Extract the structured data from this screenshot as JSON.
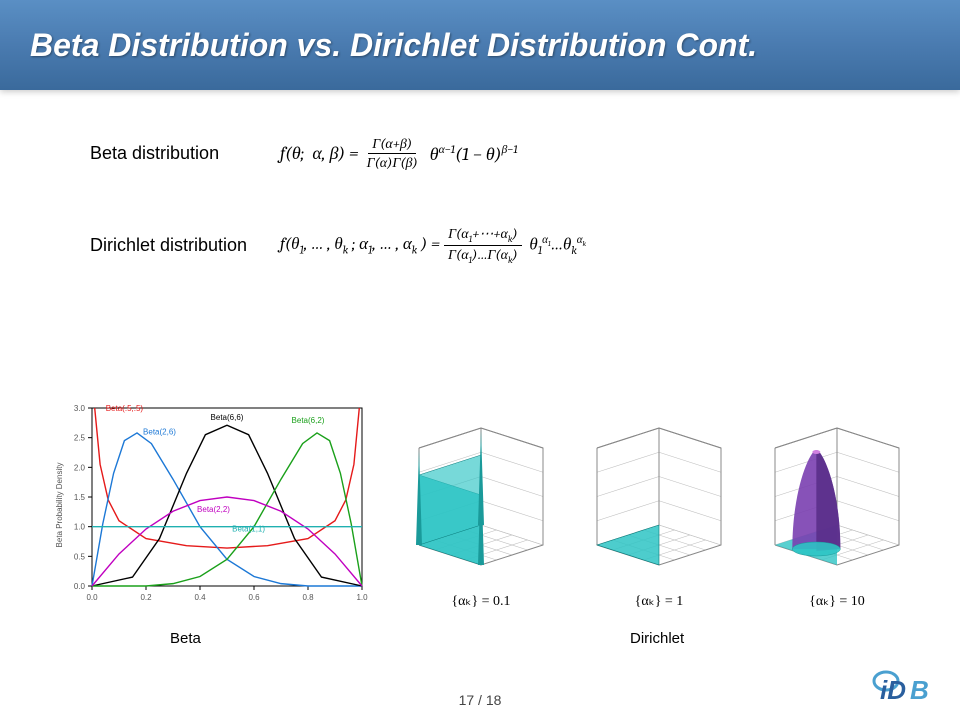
{
  "title": "Beta Distribution vs. Dirichlet Distribution  Cont.",
  "rows": {
    "beta": {
      "label": "Beta distribution"
    },
    "dirichlet": {
      "label": "Dirichlet distribution"
    }
  },
  "equations": {
    "beta": {
      "lhs": "f(θ;  α, β) = ",
      "frac_num": "Γ(α+β)",
      "frac_den": "Γ(α)Γ(β)",
      "rhs": " θ^{α−1}(1 − θ)^{β−1}"
    },
    "dirichlet": {
      "lhs": "f(θ₁, … , θ_k ; α₁, … , α_k ) = ",
      "frac_num": "Γ(α₁+⋯+α_k)",
      "frac_den": "Γ(α₁)…Γ(α_k)",
      "rhs": " θ₁^{α₁}…θ_k^{α_k}"
    }
  },
  "beta_chart": {
    "type": "line",
    "xlim": [
      0,
      1
    ],
    "ylim": [
      0,
      3
    ],
    "xticks": [
      0.0,
      0.2,
      0.4,
      0.6,
      0.8,
      1.0
    ],
    "yticks": [
      0.0,
      0.5,
      1.0,
      1.5,
      2.0,
      2.5,
      3.0
    ],
    "xlabel": "",
    "ylabel": "Beta Probability Density",
    "label_fontsize": 8,
    "background_color": "#ffffff",
    "axis_color": "#000000",
    "curves": [
      {
        "name": "Beta(.5,.5)",
        "color": "#e51a1a",
        "label_x": 0.12,
        "label_y": 2.95,
        "points": [
          [
            0.01,
            3.0
          ],
          [
            0.03,
            2.05
          ],
          [
            0.06,
            1.45
          ],
          [
            0.1,
            1.1
          ],
          [
            0.2,
            0.8
          ],
          [
            0.35,
            0.68
          ],
          [
            0.5,
            0.64
          ],
          [
            0.65,
            0.68
          ],
          [
            0.8,
            0.8
          ],
          [
            0.9,
            1.1
          ],
          [
            0.94,
            1.45
          ],
          [
            0.97,
            2.05
          ],
          [
            0.99,
            3.0
          ]
        ]
      },
      {
        "name": "Beta(2,6)",
        "color": "#1c78d6",
        "label_x": 0.25,
        "label_y": 2.55,
        "points": [
          [
            0.0,
            0.0
          ],
          [
            0.04,
            1.05
          ],
          [
            0.08,
            1.9
          ],
          [
            0.12,
            2.45
          ],
          [
            0.1667,
            2.58
          ],
          [
            0.22,
            2.4
          ],
          [
            0.3,
            1.8
          ],
          [
            0.4,
            1.0
          ],
          [
            0.5,
            0.45
          ],
          [
            0.6,
            0.16
          ],
          [
            0.7,
            0.04
          ],
          [
            0.8,
            0.0
          ],
          [
            1.0,
            0.0
          ]
        ]
      },
      {
        "name": "Beta(6,6)",
        "color": "#000000",
        "label_x": 0.5,
        "label_y": 2.8,
        "points": [
          [
            0.0,
            0.0
          ],
          [
            0.15,
            0.15
          ],
          [
            0.25,
            0.8
          ],
          [
            0.35,
            1.9
          ],
          [
            0.42,
            2.55
          ],
          [
            0.5,
            2.71
          ],
          [
            0.58,
            2.55
          ],
          [
            0.65,
            1.9
          ],
          [
            0.75,
            0.8
          ],
          [
            0.85,
            0.15
          ],
          [
            1.0,
            0.0
          ]
        ]
      },
      {
        "name": "Beta(6,2)",
        "color": "#1aa01a",
        "label_x": 0.8,
        "label_y": 2.75,
        "points": [
          [
            0.0,
            0.0
          ],
          [
            0.2,
            0.0
          ],
          [
            0.3,
            0.04
          ],
          [
            0.4,
            0.16
          ],
          [
            0.5,
            0.45
          ],
          [
            0.6,
            1.0
          ],
          [
            0.7,
            1.8
          ],
          [
            0.78,
            2.4
          ],
          [
            0.8333,
            2.58
          ],
          [
            0.88,
            2.45
          ],
          [
            0.92,
            1.9
          ],
          [
            0.96,
            1.05
          ],
          [
            1.0,
            0.0
          ]
        ]
      },
      {
        "name": "Beta(2,2)",
        "color": "#c000c0",
        "label_x": 0.45,
        "label_y": 1.25,
        "points": [
          [
            0.0,
            0.0
          ],
          [
            0.1,
            0.54
          ],
          [
            0.2,
            0.96
          ],
          [
            0.3,
            1.26
          ],
          [
            0.4,
            1.44
          ],
          [
            0.5,
            1.5
          ],
          [
            0.6,
            1.44
          ],
          [
            0.7,
            1.26
          ],
          [
            0.8,
            0.96
          ],
          [
            0.9,
            0.54
          ],
          [
            1.0,
            0.0
          ]
        ]
      },
      {
        "name": "Beta(1,1)",
        "color": "#20b0b0",
        "label_x": 0.58,
        "label_y": 0.92,
        "points": [
          [
            0.0,
            1.0
          ],
          [
            1.0,
            1.0
          ]
        ]
      }
    ]
  },
  "dirichlet_panels": [
    {
      "alpha": "{αₖ} = 0.1",
      "surface_color": "#2ec4c4",
      "shape": "bathtub"
    },
    {
      "alpha": "{αₖ} = 1",
      "surface_color": "#2ec4c4",
      "shape": "flat"
    },
    {
      "alpha": "{αₖ} = 10",
      "surface_color": "#7a3fb0",
      "surface_color2": "#2ec4c4",
      "shape": "peak"
    }
  ],
  "fig_labels": {
    "beta": "Beta",
    "dirichlet": "Dirichlet"
  },
  "pager": "17 / 18",
  "logo": {
    "text": "iDB"
  },
  "colors": {
    "title_gradient_top": "#5a8fc4",
    "title_gradient_bottom": "#3a6a9c",
    "title_text": "#ffffff",
    "body_text": "#000000",
    "logo_primary": "#2a5f9e",
    "logo_accent": "#4aa0d0"
  }
}
